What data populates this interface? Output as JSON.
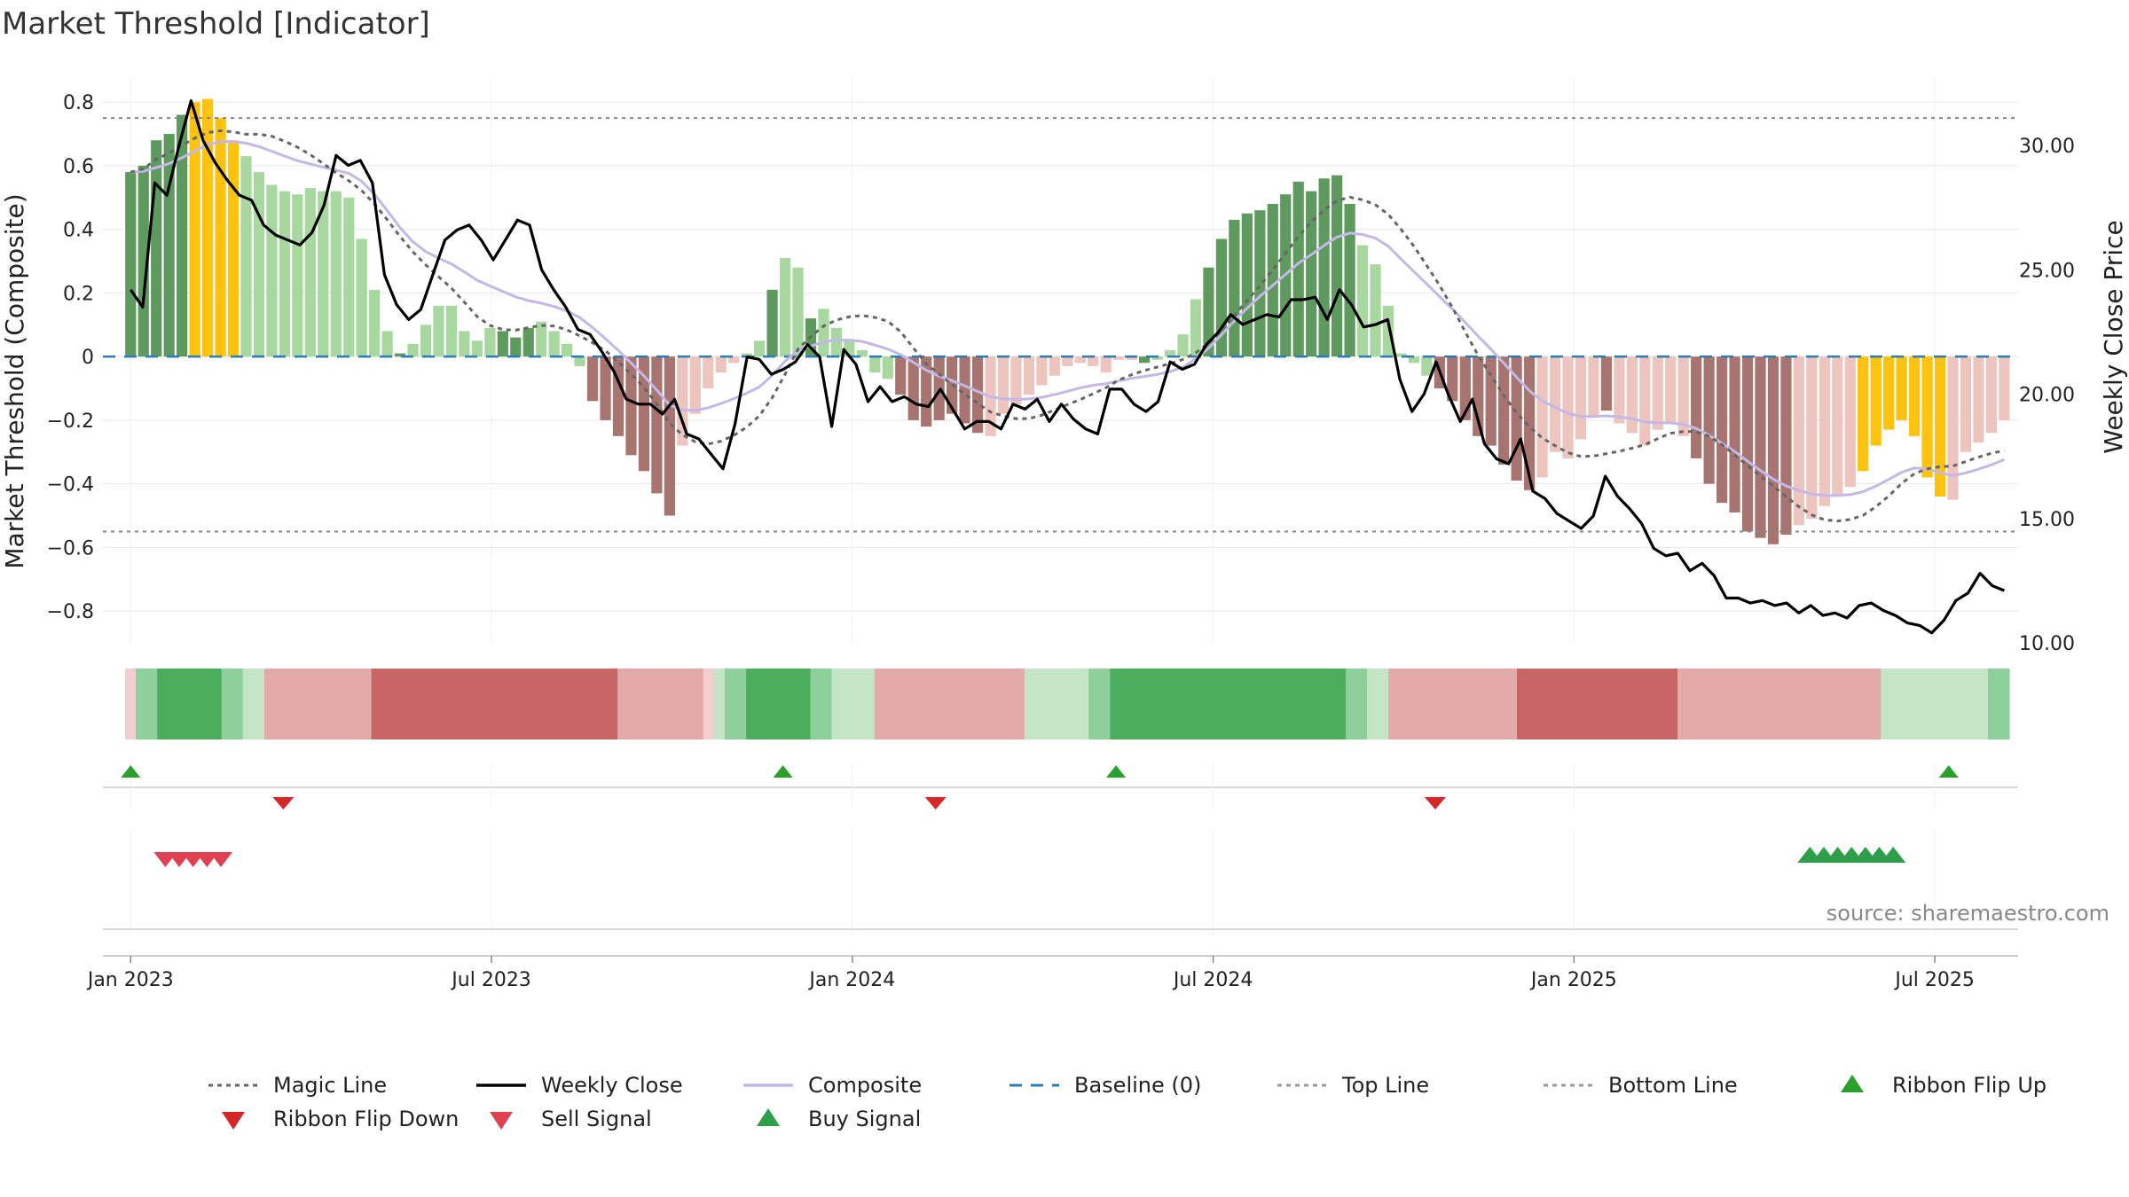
{
  "title": "Market Threshold [Indicator]",
  "source": "source: sharemaestro.com",
  "chart_data": {
    "type": "bar",
    "title": "Market Threshold [Indicator]",
    "ylabel_left": "Market Threshold (Composite)",
    "ylabel_right": "Weekly Close Price",
    "ylim_left": [
      -0.9,
      0.82
    ],
    "ylim_right": [
      10,
      32
    ],
    "y_ticks_left": [
      0.8,
      0.6,
      0.4,
      0.2,
      0,
      -0.2,
      -0.4,
      -0.6,
      -0.8
    ],
    "y_tick_labels_left": [
      "0.8",
      "0.6",
      "0.4",
      "0.2",
      "0",
      "−0.2",
      "−0.4",
      "−0.6",
      "−0.8"
    ],
    "y_ticks_right": [
      30,
      25,
      20,
      15,
      10
    ],
    "y_tick_labels_right": [
      "30.00",
      "25.00",
      "20.00",
      "15.00",
      "10.00"
    ],
    "x_ticks": [
      "Jan 2023",
      "Jul 2023",
      "Jan 2024",
      "Jul 2024",
      "Jan 2025",
      "Jul 2025"
    ],
    "x_range_weeks": [
      -2,
      136
    ],
    "x_tick_weeks": [
      0,
      26,
      52,
      78,
      104,
      130
    ],
    "top_line": 0.75,
    "bottom_line": -0.55,
    "baseline": 0,
    "grid": true,
    "legend_position": "bottom",
    "composite_bars_weekly": [
      0.58,
      0.6,
      0.68,
      0.7,
      0.76,
      0.8,
      0.81,
      0.75,
      0.68,
      0.63,
      0.58,
      0.54,
      0.52,
      0.51,
      0.53,
      0.52,
      0.52,
      0.5,
      0.37,
      0.21,
      0.08,
      0.01,
      0.04,
      0.1,
      0.16,
      0.16,
      0.08,
      0.05,
      0.09,
      0.08,
      0.06,
      0.09,
      0.11,
      0.08,
      0.04,
      -0.03,
      -0.14,
      -0.2,
      -0.25,
      -0.31,
      -0.36,
      -0.43,
      -0.5,
      -0.28,
      -0.18,
      -0.1,
      -0.05,
      -0.02,
      0.01,
      0.05,
      0.21,
      0.31,
      0.28,
      0.12,
      0.15,
      0.09,
      0.05,
      0.02,
      -0.05,
      -0.07,
      -0.12,
      -0.2,
      -0.22,
      -0.2,
      -0.18,
      -0.21,
      -0.24,
      -0.25,
      -0.18,
      -0.15,
      -0.12,
      -0.09,
      -0.06,
      -0.03,
      -0.02,
      -0.03,
      -0.05,
      -0.01,
      -0.01,
      -0.02,
      -0.01,
      0.02,
      0.07,
      0.18,
      0.28,
      0.37,
      0.43,
      0.45,
      0.46,
      0.48,
      0.51,
      0.55,
      0.52,
      0.56,
      0.57,
      0.48,
      0.35,
      0.29,
      0.16,
      0.01,
      -0.02,
      -0.06,
      -0.1,
      -0.14,
      -0.2,
      -0.25,
      -0.28,
      -0.34,
      -0.39,
      -0.42,
      -0.38,
      -0.3,
      -0.32,
      -0.26,
      -0.19,
      -0.17,
      -0.21,
      -0.24,
      -0.28,
      -0.23,
      -0.21,
      -0.25,
      -0.32,
      -0.4,
      -0.46,
      -0.49,
      -0.55,
      -0.57,
      -0.59,
      -0.56,
      -0.53,
      -0.51,
      -0.47,
      -0.44,
      -0.41,
      -0.36,
      -0.28,
      -0.23,
      -0.2,
      -0.25,
      -0.38,
      -0.44,
      -0.45,
      -0.3,
      -0.27,
      -0.24,
      -0.2
    ],
    "bar_regimes": "gggggyyyyllllllllllllglllllllgggllllrrrrrrrpppppllgllgllllllrrrrrrrppppppppppppgllllggggggggggggllllllrrrrrrrrppppprpppppprrrrrrrrpppppyyyyyyyppppprrrrpppp",
    "weekly_close_price": [
      24.2,
      23.5,
      28.5,
      28.0,
      30.0,
      31.8,
      30.2,
      29.3,
      28.6,
      28.0,
      27.8,
      26.8,
      26.4,
      26.2,
      26.0,
      26.5,
      27.6,
      29.6,
      29.2,
      29.4,
      28.5,
      24.8,
      23.6,
      23.0,
      23.4,
      24.8,
      26.2,
      26.6,
      26.8,
      26.2,
      25.4,
      26.2,
      27.0,
      26.8,
      25.0,
      24.2,
      23.5,
      22.6,
      22.4,
      21.7,
      20.9,
      19.8,
      19.6,
      19.6,
      19.2,
      19.8,
      18.4,
      18.2,
      17.6,
      17.0,
      18.8,
      21.5,
      21.4,
      20.8,
      21.0,
      21.3,
      22.0,
      21.5,
      18.7,
      21.8,
      21.2,
      19.7,
      20.3,
      19.7,
      19.9,
      19.6,
      19.5,
      20.2,
      19.4,
      18.6,
      18.9,
      18.9,
      18.6,
      19.6,
      19.4,
      19.8,
      18.9,
      19.6,
      19.0,
      18.6,
      18.4,
      20.2,
      20.2,
      19.6,
      19.3,
      19.7,
      21.3,
      21.0,
      21.2,
      22.0,
      22.5,
      23.2,
      22.8,
      23.0,
      23.2,
      23.1,
      23.8,
      23.8,
      23.9,
      23.0,
      24.2,
      23.6,
      22.7,
      22.8,
      23.0,
      20.6,
      19.3,
      20.0,
      21.3,
      20.0,
      18.9,
      19.8,
      18.0,
      17.4,
      17.2,
      18.2,
      16.1,
      15.8,
      15.2,
      14.9,
      14.6,
      15.1,
      16.7,
      15.9,
      15.4,
      14.8,
      13.8,
      13.5,
      13.6,
      12.9,
      13.2,
      12.7,
      11.8,
      11.8,
      11.6,
      11.7,
      11.5,
      11.6,
      11.2,
      11.5,
      11.1,
      11.2,
      11.0,
      11.5,
      11.6,
      11.3,
      11.1,
      10.8,
      10.7,
      10.4,
      10.9,
      11.7,
      12.0,
      12.8,
      12.3,
      12.1
    ],
    "series": [
      {
        "name": "Magic Line",
        "style": "dotted",
        "color": "#777777"
      },
      {
        "name": "Weekly Close",
        "style": "solid",
        "color": "#000000"
      },
      {
        "name": "Composite",
        "style": "solid",
        "color": "#c4b8e6"
      },
      {
        "name": "Baseline (0)",
        "style": "dashed",
        "color": "#2c7bb6"
      },
      {
        "name": "Top Line",
        "style": "dotted",
        "color": "#888888"
      },
      {
        "name": "Bottom Line",
        "style": "dotted",
        "color": "#888888"
      }
    ],
    "ribbon_weekly": "PGGGGGGGGGGLLQQQQQQQQQQRRRRRRRRRRRRRRRRRRRRRRRQQQQQQQQPLGGGGGGGGGGLLLLQQQQQQQQQQQQQQLLLLLLGGGGGGGGGGGGGGGGGGGGGGGGGGLLQQQQQQQQQQQQRRRRRRRRRRRRRRRQQQQQQQQQQQQQQQQQQQLLLLLLLLLLGG",
    "ribbon_flip_up_weeks": [
      0,
      47,
      71,
      131
    ],
    "ribbon_flip_down_weeks": [
      11,
      58,
      94
    ],
    "sell_signal_weeks": [
      2.5,
      3.5,
      4.5,
      5.5,
      6.5
    ],
    "buy_signal_weeks": [
      121,
      122,
      123,
      124,
      125,
      126,
      127
    ],
    "legend": [
      {
        "label": "Magic Line",
        "marker": "dotted-line",
        "color": "#666666"
      },
      {
        "label": "Weekly Close",
        "marker": "solid-line",
        "color": "#000000"
      },
      {
        "label": "Composite",
        "marker": "solid-line",
        "color": "#c4b8e6"
      },
      {
        "label": "Baseline (0)",
        "marker": "dashed-line",
        "color": "#2c7bb6"
      },
      {
        "label": "Top Line",
        "marker": "dotted-line",
        "color": "#999999"
      },
      {
        "label": "Bottom Line",
        "marker": "dotted-line",
        "color": "#999999"
      },
      {
        "label": "Ribbon Flip Up",
        "marker": "triangle-up",
        "color": "#2ca02c"
      },
      {
        "label": "Ribbon Flip Down",
        "marker": "triangle-down",
        "color": "#d62728"
      },
      {
        "label": "Sell Signal",
        "marker": "triangle-down",
        "color": "#e04050"
      },
      {
        "label": "Buy Signal",
        "marker": "triangle-up",
        "color": "#2e9e4a"
      }
    ]
  },
  "colors": {
    "dark_green": "#5e9a5e",
    "light_green": "#a8d8a0",
    "yellow": "#ffc20e",
    "dark_red": "#a87470",
    "light_red": "#eec4be",
    "ribbon_pale_red": "#f2cece",
    "ribbon_red": "#e3aaaa",
    "ribbon_deep_red": "#c86666",
    "ribbon_pale_green": "#c4e6c6",
    "ribbon_mid_green": "#8dd09b",
    "ribbon_deep_green": "#4cae5c",
    "flip_up": "#2ca02c",
    "flip_down": "#d62728",
    "sell": "#e04050",
    "buy": "#2e9e4a",
    "magic_line": "#666666",
    "grid": "#e8e8e8"
  }
}
